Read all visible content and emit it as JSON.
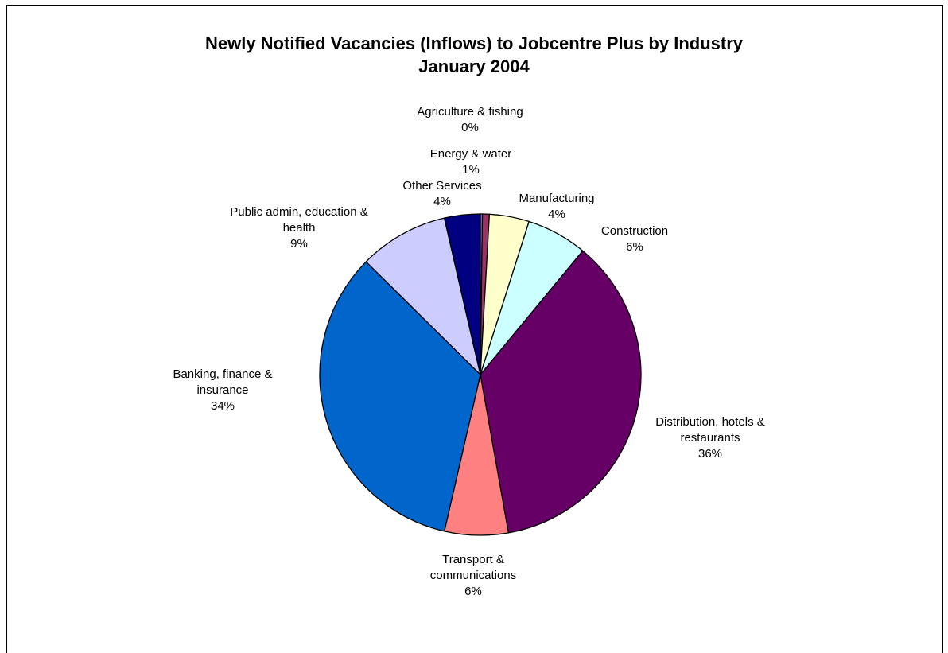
{
  "chart_data": {
    "type": "pie",
    "title": "Newly Notified Vacancies (Inflows) to Jobcentre Plus by Industry",
    "subtitle": "January 2004",
    "slices": [
      {
        "category": "Agriculture & fishing",
        "label_lines": [
          "Agriculture & fishing"
        ],
        "percent_label": "0%",
        "value": 0.2,
        "color": "#9999ff"
      },
      {
        "category": "Energy & water",
        "label_lines": [
          "Energy & water"
        ],
        "percent_label": "1%",
        "value": 0.7,
        "color": "#993366"
      },
      {
        "category": "Manufacturing",
        "label_lines": [
          "Manufacturing"
        ],
        "percent_label": "4%",
        "value": 4.0,
        "color": "#ffffcc"
      },
      {
        "category": "Construction",
        "label_lines": [
          "Construction"
        ],
        "percent_label": "6%",
        "value": 6.1,
        "color": "#ccffff"
      },
      {
        "category": "Distribution, hotels & restaurants",
        "label_lines": [
          "Distribution, hotels &",
          "restaurants"
        ],
        "percent_label": "36%",
        "value": 36.2,
        "color": "#660066"
      },
      {
        "category": "Transport & communications",
        "label_lines": [
          "Transport &",
          "communications"
        ],
        "percent_label": "6%",
        "value": 6.4,
        "color": "#ff8080"
      },
      {
        "category": "Banking, finance & insurance",
        "label_lines": [
          "Banking, finance &",
          "insurance"
        ],
        "percent_label": "34%",
        "value": 33.8,
        "color": "#0066cc"
      },
      {
        "category": "Public admin, education & health",
        "label_lines": [
          "Public admin, education &",
          "health"
        ],
        "percent_label": "9%",
        "value": 9.0,
        "color": "#ccccff"
      },
      {
        "category": "Other Services",
        "label_lines": [
          "Other Services"
        ],
        "percent_label": "4%",
        "value": 3.6,
        "color": "#000080"
      }
    ],
    "start_angle_deg": 0,
    "direction": "clockwise"
  }
}
